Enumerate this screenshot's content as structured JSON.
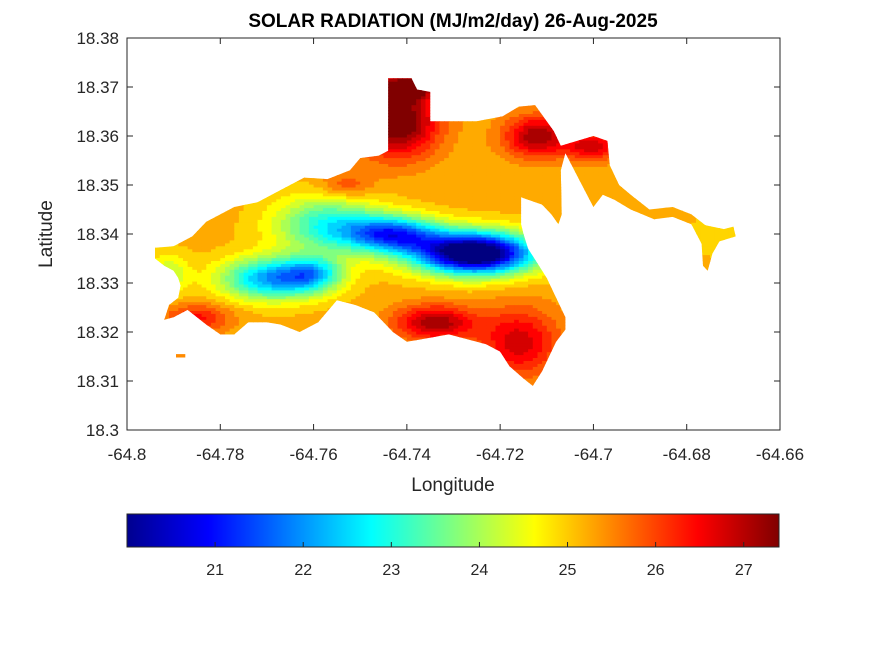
{
  "chart_data": {
    "type": "heatmap",
    "title": "SOLAR RADIATION (MJ/m2/day) 26-Aug-2025",
    "xlabel": "Longitude",
    "ylabel": "Latitude",
    "xlim": [
      -64.8,
      -64.66
    ],
    "ylim": [
      18.3,
      18.38
    ],
    "xticks": [
      -64.8,
      -64.78,
      -64.76,
      -64.74,
      -64.72,
      -64.7,
      -64.68,
      -64.66
    ],
    "yticks": [
      18.3,
      18.31,
      18.32,
      18.33,
      18.34,
      18.35,
      18.36,
      18.37,
      18.38
    ],
    "xtick_labels": [
      "-64.8",
      "-64.78",
      "-64.76",
      "-64.74",
      "-64.72",
      "-64.7",
      "-64.68",
      "-64.66"
    ],
    "ytick_labels": [
      "18.3",
      "18.31",
      "18.32",
      "18.33",
      "18.34",
      "18.35",
      "18.36",
      "18.37",
      "18.38"
    ],
    "colormap": "jet",
    "clim": [
      20.0,
      27.4
    ],
    "colorbar_ticks": [
      21,
      22,
      23,
      24,
      25,
      26,
      27
    ],
    "colorbar_tick_labels": [
      "21",
      "22",
      "23",
      "24",
      "25",
      "26",
      "27"
    ],
    "colorbar_location": "bottom",
    "grid": false,
    "land_polygon": [
      [
        -64.794,
        18.3372
      ],
      [
        -64.79,
        18.3375
      ],
      [
        -64.786,
        18.3395
      ],
      [
        -64.783,
        18.3425
      ],
      [
        -64.78,
        18.344
      ],
      [
        -64.777,
        18.3455
      ],
      [
        -64.772,
        18.3465
      ],
      [
        -64.767,
        18.349
      ],
      [
        -64.762,
        18.3515
      ],
      [
        -64.757,
        18.3512
      ],
      [
        -64.7522,
        18.353
      ],
      [
        -64.75,
        18.3555
      ],
      [
        -64.746,
        18.356
      ],
      [
        -64.744,
        18.357
      ],
      [
        -64.744,
        18.3718
      ],
      [
        -64.739,
        18.3718
      ],
      [
        -64.7378,
        18.3695
      ],
      [
        -64.735,
        18.369
      ],
      [
        -64.735,
        18.363
      ],
      [
        -64.725,
        18.363
      ],
      [
        -64.7195,
        18.364
      ],
      [
        -64.716,
        18.366
      ],
      [
        -64.7125,
        18.3663
      ],
      [
        -64.7085,
        18.361
      ],
      [
        -64.707,
        18.358
      ],
      [
        -64.7,
        18.36
      ],
      [
        -64.697,
        18.359
      ],
      [
        -64.6965,
        18.354
      ],
      [
        -64.6945,
        18.35
      ],
      [
        -64.692,
        18.348
      ],
      [
        -64.688,
        18.345
      ],
      [
        -64.683,
        18.3455
      ],
      [
        -64.679,
        18.344
      ],
      [
        -64.676,
        18.3418
      ],
      [
        -64.672,
        18.341
      ],
      [
        -64.67,
        18.3415
      ],
      [
        -64.6695,
        18.3395
      ],
      [
        -64.673,
        18.3385
      ],
      [
        -64.6745,
        18.336
      ],
      [
        -64.6755,
        18.3325
      ],
      [
        -64.6765,
        18.3335
      ],
      [
        -64.6768,
        18.338
      ],
      [
        -64.679,
        18.342
      ],
      [
        -64.683,
        18.3435
      ],
      [
        -64.687,
        18.343
      ],
      [
        -64.692,
        18.345
      ],
      [
        -64.6955,
        18.347
      ],
      [
        -64.698,
        18.348
      ],
      [
        -64.7,
        18.3455
      ],
      [
        -64.703,
        18.351
      ],
      [
        -64.706,
        18.3565
      ],
      [
        -64.707,
        18.353
      ],
      [
        -64.7068,
        18.344
      ],
      [
        -64.7075,
        18.342
      ],
      [
        -64.709,
        18.344
      ],
      [
        -64.711,
        18.346
      ],
      [
        -64.714,
        18.347
      ],
      [
        -64.7155,
        18.3475
      ],
      [
        -64.7155,
        18.342
      ],
      [
        -64.715,
        18.34
      ],
      [
        -64.714,
        18.337
      ],
      [
        -64.712,
        18.334
      ],
      [
        -64.71,
        18.331
      ],
      [
        -64.708,
        18.327
      ],
      [
        -64.706,
        18.323
      ],
      [
        -64.706,
        18.3205
      ],
      [
        -64.708,
        18.318
      ],
      [
        -64.709,
        18.316
      ],
      [
        -64.711,
        18.312
      ],
      [
        -64.713,
        18.309
      ],
      [
        -64.715,
        18.3105
      ],
      [
        -64.718,
        18.313
      ],
      [
        -64.72,
        18.316
      ],
      [
        -64.723,
        18.3175
      ],
      [
        -64.725,
        18.318
      ],
      [
        -64.731,
        18.3195
      ],
      [
        -64.737,
        18.3185
      ],
      [
        -64.74,
        18.318
      ],
      [
        -64.743,
        18.32
      ],
      [
        -64.747,
        18.324
      ],
      [
        -64.751,
        18.3255
      ],
      [
        -64.755,
        18.3265
      ],
      [
        -64.759,
        18.322
      ],
      [
        -64.763,
        18.32
      ],
      [
        -64.767,
        18.3215
      ],
      [
        -64.77,
        18.322
      ],
      [
        -64.774,
        18.322
      ],
      [
        -64.777,
        18.3195
      ],
      [
        -64.78,
        18.3195
      ],
      [
        -64.783,
        18.3215
      ],
      [
        -64.787,
        18.3245
      ],
      [
        -64.79,
        18.323
      ],
      [
        -64.792,
        18.3225
      ],
      [
        -64.791,
        18.3255
      ],
      [
        -64.789,
        18.327
      ],
      [
        -64.7885,
        18.3295
      ],
      [
        -64.789,
        18.331
      ],
      [
        -64.79,
        18.3325
      ],
      [
        -64.792,
        18.3335
      ],
      [
        -64.794,
        18.335
      ]
    ],
    "islet": [
      [
        -64.7895,
        18.3155
      ],
      [
        -64.7875,
        18.3155
      ],
      [
        -64.7875,
        18.3148
      ],
      [
        -64.7895,
        18.3148
      ]
    ],
    "hotspots": [
      {
        "x": -64.7255,
        "y": 18.3362,
        "sx": 0.009,
        "sy": 0.003,
        "value": -6.2
      },
      {
        "x": -64.743,
        "y": 18.34,
        "sx": 0.007,
        "sy": 0.0026,
        "value": -3.6
      },
      {
        "x": -64.769,
        "y": 18.331,
        "sx": 0.0075,
        "sy": 0.003,
        "value": -3.1
      },
      {
        "x": -64.76,
        "y": 18.332,
        "sx": 0.0045,
        "sy": 0.0025,
        "value": -2.0
      },
      {
        "x": -64.757,
        "y": 18.342,
        "sx": 0.008,
        "sy": 0.004,
        "value": -2.2
      },
      {
        "x": -64.791,
        "y": 18.332,
        "sx": 0.003,
        "sy": 0.003,
        "value": -1.0
      },
      {
        "x": -64.742,
        "y": 18.363,
        "sx": 0.006,
        "sy": 0.005,
        "value": 2.6
      },
      {
        "x": -64.74,
        "y": 18.37,
        "sx": 0.004,
        "sy": 0.0018,
        "value": 2.4
      },
      {
        "x": -64.712,
        "y": 18.36,
        "sx": 0.005,
        "sy": 0.003,
        "value": 2.0
      },
      {
        "x": -64.7,
        "y": 18.358,
        "sx": 0.004,
        "sy": 0.002,
        "value": 1.6
      },
      {
        "x": -64.734,
        "y": 18.322,
        "sx": 0.006,
        "sy": 0.0025,
        "value": 2.0
      },
      {
        "x": -64.716,
        "y": 18.318,
        "sx": 0.006,
        "sy": 0.005,
        "value": 1.6
      },
      {
        "x": -64.753,
        "y": 18.35,
        "sx": 0.004,
        "sy": 0.002,
        "value": 0.8
      },
      {
        "x": -64.785,
        "y": 18.323,
        "sx": 0.005,
        "sy": 0.002,
        "value": 1.2
      },
      {
        "x": -64.673,
        "y": 18.34,
        "sx": 0.004,
        "sy": 0.003,
        "value": -0.4
      }
    ],
    "base_value": 25.2
  }
}
